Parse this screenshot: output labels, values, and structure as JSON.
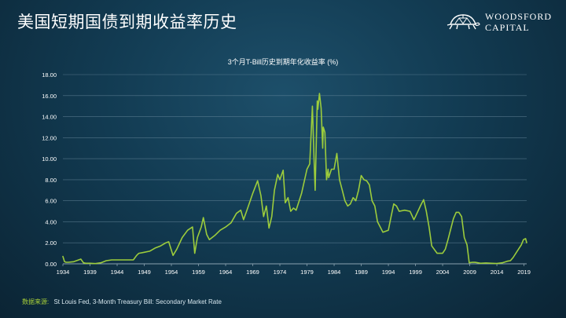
{
  "slide": {
    "title": "美国短期国债到期收益率历史"
  },
  "logo": {
    "line1": "WOODSFORD",
    "line2": "CAPITAL",
    "icon": "turtle-icon"
  },
  "source": {
    "label": "数据来源:",
    "text": "St Louis Fed, 3-Month Treasury Bill: Secondary Market Rate"
  },
  "colors": {
    "line": "#9ccc3c",
    "grid": "#6f8fa3",
    "axis_text": "#ffffff"
  },
  "chart_data": {
    "type": "line",
    "title": "3个月T-Bill历史到期年化收益率 (%)",
    "xlabel": "",
    "ylabel": "",
    "xlim": [
      1934,
      2019.5
    ],
    "ylim": [
      0,
      18
    ],
    "x_ticks": [
      "1934",
      "1939",
      "1944",
      "1949",
      "1954",
      "1959",
      "1964",
      "1969",
      "1974",
      "1979",
      "1984",
      "1989",
      "1994",
      "1999",
      "2004",
      "2009",
      "2014",
      "2019"
    ],
    "y_ticks": [
      "0.00",
      "2.00",
      "4.00",
      "6.00",
      "8.00",
      "10.00",
      "12.00",
      "14.00",
      "16.00",
      "18.00"
    ],
    "grid": true,
    "legend": "none",
    "series": [
      {
        "x": [
          1934.0,
          1934.3,
          1934.6,
          1935.0,
          1936.0,
          1937.3,
          1937.8,
          1938.2,
          1939.0,
          1940.0,
          1941.0,
          1942.0,
          1943.0,
          1945.0,
          1947.0,
          1947.6,
          1948.0,
          1949.0,
          1950.0,
          1951.0,
          1952.0,
          1953.0,
          1953.5,
          1954.3,
          1955.0,
          1956.0,
          1957.0,
          1957.9,
          1958.3,
          1958.8,
          1959.5,
          1959.9,
          1960.5,
          1961.0,
          1962.0,
          1963.0,
          1964.0,
          1965.0,
          1966.0,
          1966.8,
          1967.3,
          1968.0,
          1969.0,
          1969.9,
          1970.5,
          1971.0,
          1971.5,
          1972.0,
          1972.5,
          1973.0,
          1973.6,
          1974.0,
          1974.6,
          1975.0,
          1975.5,
          1976.0,
          1976.5,
          1977.0,
          1978.0,
          1979.0,
          1979.5,
          1980.0,
          1980.3,
          1980.5,
          1980.9,
          1981.0,
          1981.3,
          1981.6,
          1981.9,
          1982.0,
          1982.3,
          1982.6,
          1982.9,
          1983.0,
          1983.5,
          1984.0,
          1984.5,
          1984.8,
          1985.0,
          1985.5,
          1986.0,
          1986.5,
          1987.0,
          1987.5,
          1988.0,
          1988.5,
          1989.0,
          1989.5,
          1990.0,
          1990.5,
          1991.0,
          1991.5,
          1992.0,
          1992.5,
          1993.0,
          1993.5,
          1994.0,
          1994.5,
          1995.0,
          1995.5,
          1996.0,
          1997.0,
          1998.0,
          1998.7,
          1999.0,
          2000.0,
          2000.5,
          2001.0,
          2001.5,
          2002.0,
          2003.0,
          2003.5,
          2004.0,
          2004.5,
          2005.0,
          2006.0,
          2006.5,
          2007.0,
          2007.5,
          2008.0,
          2008.5,
          2008.9,
          2009.5,
          2010.0,
          2011.0,
          2012.0,
          2013.0,
          2014.0,
          2015.0,
          2015.9,
          2016.5,
          2017.0,
          2017.5,
          2018.0,
          2018.5,
          2018.9,
          2019.3,
          2019.5
        ],
        "y": [
          0.7,
          0.2,
          0.15,
          0.15,
          0.2,
          0.45,
          0.1,
          0.05,
          0.05,
          0.02,
          0.1,
          0.3,
          0.37,
          0.37,
          0.38,
          0.8,
          1.0,
          1.1,
          1.2,
          1.5,
          1.7,
          2.0,
          2.1,
          0.8,
          1.4,
          2.5,
          3.2,
          3.5,
          1.0,
          2.5,
          3.5,
          4.4,
          2.8,
          2.3,
          2.7,
          3.2,
          3.5,
          3.9,
          4.8,
          5.1,
          4.2,
          5.2,
          6.7,
          7.9,
          6.5,
          4.5,
          5.5,
          3.4,
          4.5,
          7.0,
          8.5,
          8.0,
          8.9,
          5.8,
          6.3,
          5.0,
          5.3,
          5.1,
          6.7,
          9.0,
          9.5,
          15.0,
          10.0,
          7.0,
          15.5,
          14.7,
          16.2,
          14.8,
          11.0,
          13.0,
          12.5,
          8.0,
          9.0,
          8.2,
          9.0,
          9.0,
          10.5,
          9.0,
          8.0,
          7.0,
          6.0,
          5.5,
          5.7,
          6.3,
          6.0,
          7.0,
          8.4,
          8.0,
          7.9,
          7.5,
          6.0,
          5.5,
          4.0,
          3.5,
          3.0,
          3.1,
          3.2,
          4.5,
          5.7,
          5.5,
          5.0,
          5.1,
          5.0,
          4.2,
          4.5,
          5.6,
          6.1,
          5.0,
          3.5,
          1.7,
          1.0,
          1.0,
          1.0,
          1.4,
          2.3,
          4.3,
          4.9,
          4.9,
          4.5,
          2.5,
          1.8,
          0.1,
          0.15,
          0.14,
          0.05,
          0.08,
          0.05,
          0.03,
          0.1,
          0.25,
          0.3,
          0.6,
          1.0,
          1.4,
          1.8,
          2.3,
          2.4,
          2.0
        ]
      }
    ]
  }
}
